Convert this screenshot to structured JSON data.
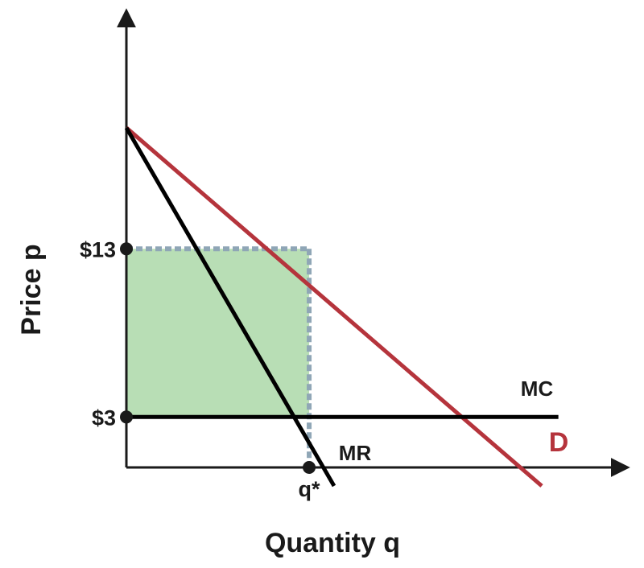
{
  "chart_data": {
    "type": "line",
    "title": "",
    "xlabel": "Quantity q",
    "ylabel": "Price p",
    "xlim": [
      0,
      10
    ],
    "ylim": [
      0,
      23
    ],
    "grid": false,
    "y_ticks": [
      {
        "value": 13,
        "label": "$13"
      },
      {
        "value": 3,
        "label": "$3"
      }
    ],
    "x_ticks": [
      {
        "value": 4.4,
        "label": "q*"
      }
    ],
    "series": [
      {
        "name": "D",
        "color": "#b5343c",
        "points": [
          [
            0,
            20.2
          ],
          [
            10,
            -1.1
          ]
        ]
      },
      {
        "name": "MR",
        "color": "#000000",
        "points": [
          [
            0,
            20.2
          ],
          [
            5,
            -1.1
          ]
        ]
      },
      {
        "name": "MC",
        "color": "#000000",
        "points": [
          [
            0,
            3
          ],
          [
            10.4,
            3
          ]
        ]
      }
    ],
    "shaded_region": {
      "x": [
        0,
        4.4
      ],
      "y": [
        3,
        13
      ],
      "color": "#b8deb5"
    },
    "guides": {
      "color": "#8fa6b6",
      "price": 13,
      "quantity": 4.4
    }
  }
}
